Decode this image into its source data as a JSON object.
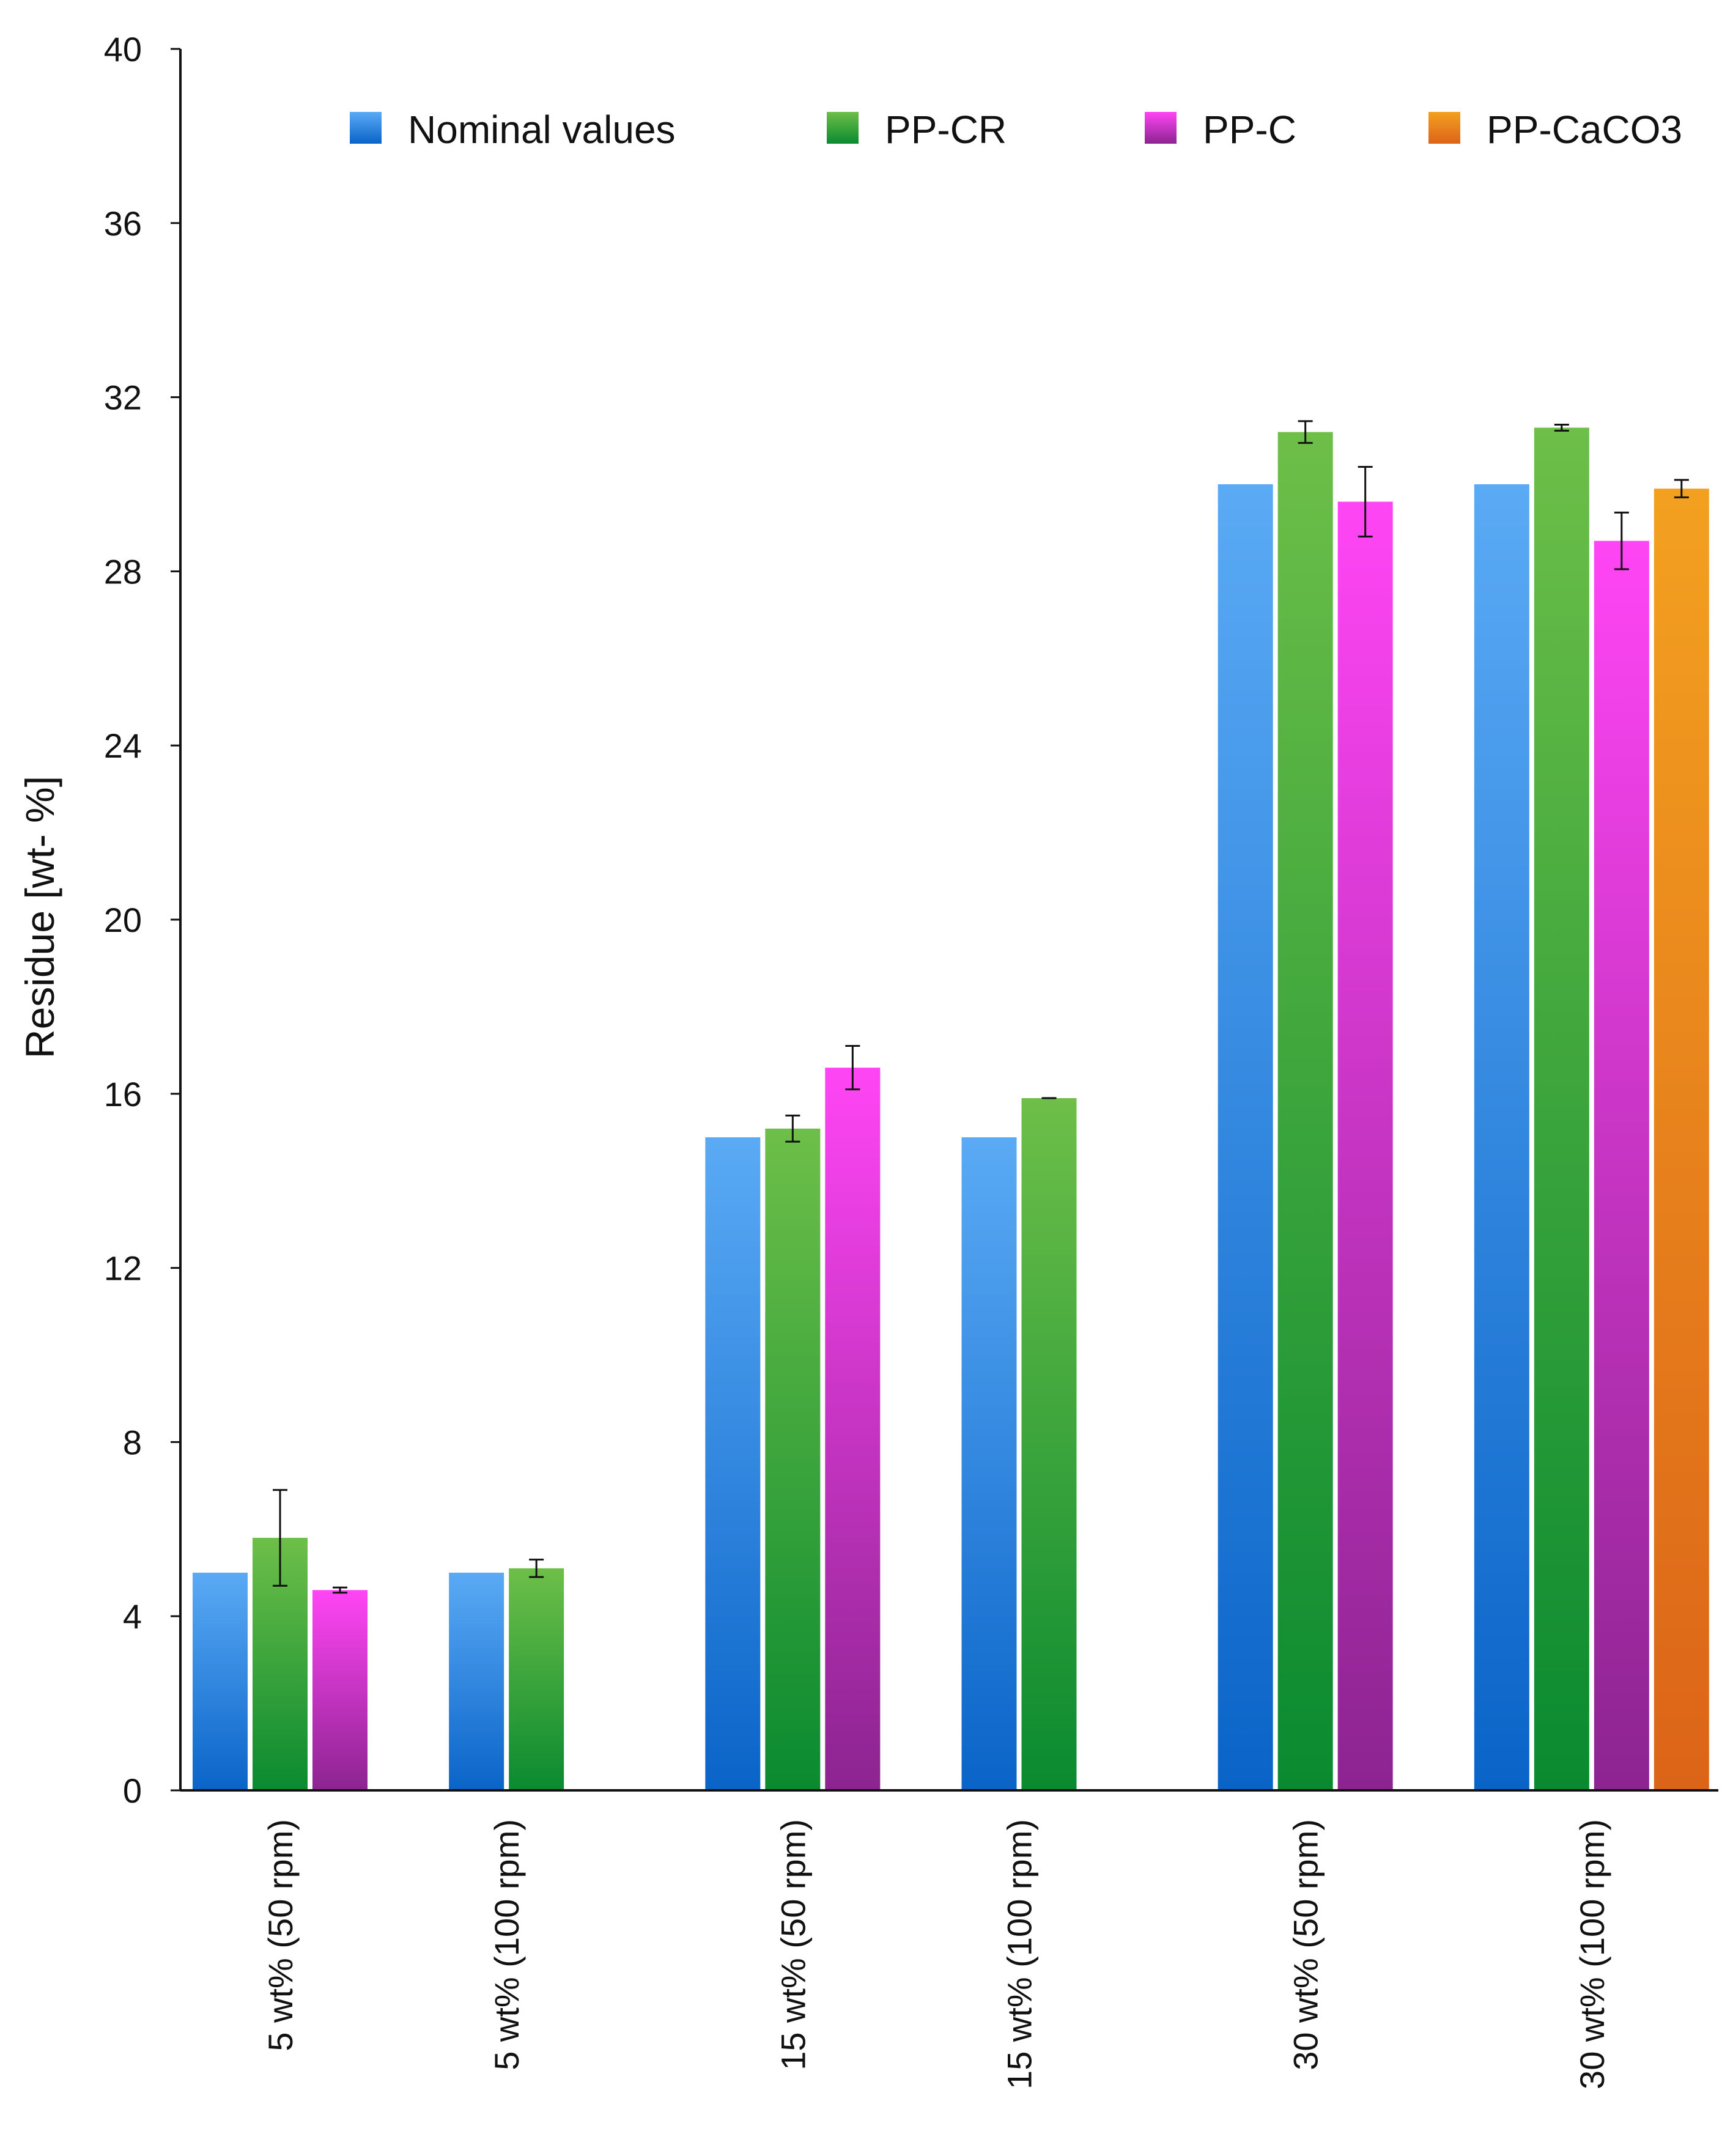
{
  "chart_data": {
    "type": "bar",
    "title": "",
    "xlabel": "",
    "ylabel": "Residue [wt- %]",
    "ylim": [
      0,
      40
    ],
    "yticks": [
      0,
      4,
      8,
      12,
      16,
      20,
      24,
      28,
      32,
      36,
      40
    ],
    "grid": false,
    "legend_position": "top",
    "categories": [
      "5 wt% (50 rpm)",
      "5 wt% (100 rpm)",
      "15 wt% (50 rpm)",
      "15 wt% (100 rpm)",
      "30 wt% (50 rpm)",
      "30 wt% (100 rpm)"
    ],
    "series": [
      {
        "name": "Nominal values",
        "key": "nominal",
        "color_top": "#5aaaf5",
        "color_bottom": "#0a64c8",
        "values": [
          5,
          5,
          15,
          15,
          30,
          30
        ],
        "errors": [
          null,
          null,
          null,
          null,
          null,
          null
        ]
      },
      {
        "name": "PP-CR",
        "key": "ppcr",
        "color_top": "#6dbf48",
        "color_bottom": "#0a8a30",
        "values": [
          5.8,
          5.1,
          15.2,
          15.9,
          31.2,
          31.3
        ],
        "errors": [
          1.1,
          0.2,
          0.3,
          0.0,
          0.25,
          0.07
        ]
      },
      {
        "name": "PP-C",
        "key": "ppc",
        "color_top": "#ff45f5",
        "color_bottom": "#8c2490",
        "values": [
          4.6,
          null,
          16.6,
          null,
          29.6,
          28.7
        ],
        "errors": [
          0.06,
          null,
          0.5,
          null,
          0.8,
          0.65
        ]
      },
      {
        "name": "PP-CaCO3",
        "key": "ppcaco3",
        "color_top": "#f3a020",
        "color_bottom": "#dc6418",
        "values": [
          null,
          null,
          null,
          null,
          null,
          29.9
        ],
        "errors": [
          null,
          null,
          null,
          null,
          null,
          0.2
        ]
      }
    ]
  }
}
